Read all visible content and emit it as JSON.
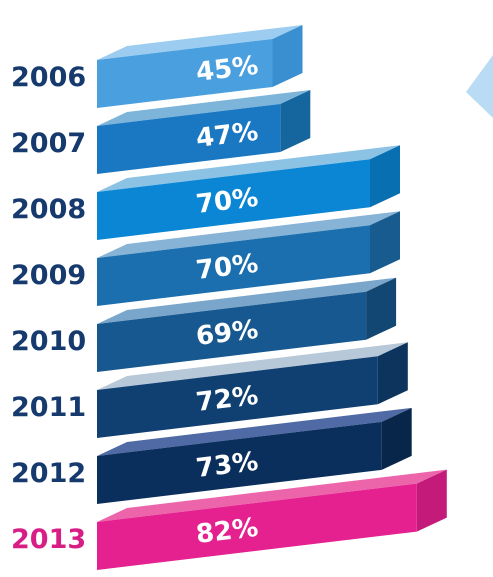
{
  "chart_data": {
    "type": "bar",
    "orientation": "horizontal",
    "style": "3d-stacked",
    "categories": [
      "2006",
      "2007",
      "2008",
      "2009",
      "2010",
      "2011",
      "2012",
      "2013"
    ],
    "values": [
      45,
      47,
      70,
      70,
      69,
      72,
      73,
      82
    ],
    "value_labels": [
      "45%",
      "47%",
      "70%",
      "70%",
      "69%",
      "72%",
      "73%",
      "82%"
    ],
    "unit": "%",
    "title": "",
    "xlabel": "",
    "ylabel": "",
    "xlim": [
      0,
      100
    ],
    "grid": false,
    "legend": "none",
    "colors": {
      "front": [
        "#4a9fdf",
        "#1a78c2",
        "#0a86d4",
        "#1c6fae",
        "#16588f",
        "#103f72",
        "#0b2f5c",
        "#e5208f"
      ],
      "top": [
        "#9ccdf0",
        "#7db5da",
        "#8cc2e4",
        "#86b3d6",
        "#7aa6cb",
        "#b7c8d8",
        "#4f6aa4",
        "#ec65ab"
      ],
      "side": [
        "#3a8fd0",
        "#15669f",
        "#086fb0",
        "#185b8f",
        "#124774",
        "#0d345c",
        "#08264a",
        "#c41b7a"
      ],
      "year_label": "#163a6e",
      "year_label_highlight": "#d81e86",
      "value_label": "#ffffff"
    }
  }
}
